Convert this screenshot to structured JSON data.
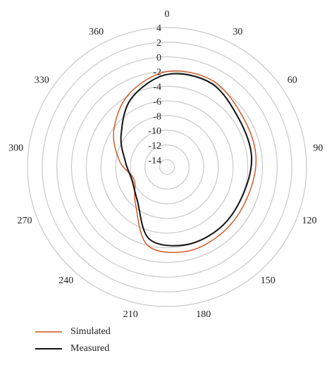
{
  "chart_data": {
    "type": "radar",
    "categories": [
      "0",
      "30",
      "60",
      "90",
      "120",
      "150",
      "180",
      "210",
      "240",
      "270",
      "300",
      "330",
      "360"
    ],
    "rlim": [
      -15,
      4
    ],
    "rticks": [
      -14,
      -12,
      -10,
      -8,
      -6,
      -4,
      -2,
      0,
      2,
      4
    ],
    "grid": true,
    "legend": "bottom-left",
    "series": [
      {
        "name": "Simulated",
        "color": "#d2501e",
        "values": [
          -2,
          -1.7,
          -2.6,
          -2.8,
          -3.3,
          -3.3,
          -3.2,
          -4,
          -8.5,
          -10.2,
          -8.5,
          -6.2,
          -3.8
        ]
      },
      {
        "name": "Measured",
        "color": "#111111",
        "values": [
          -2.4,
          -2.1,
          -3.2,
          -3.4,
          -4,
          -4,
          -4.1,
          -4.9,
          -8.9,
          -9.9,
          -9.3,
          -7.4,
          -4.5
        ]
      }
    ]
  }
}
